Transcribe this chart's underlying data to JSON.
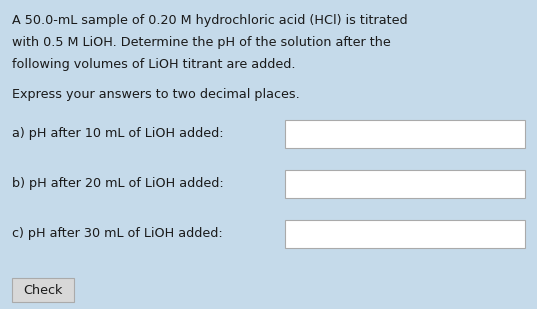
{
  "background_color": "#c5daea",
  "title_lines": [
    "A 50.0-mL sample of 0.20 M hydrochloric acid (HCl) is titrated",
    "with 0.5 M LiOH. Determine the pH of the solution after the",
    "following volumes of LiOH titrant are added."
  ],
  "subtitle": "Express your answers to two decimal places.",
  "questions": [
    "a) pH after 10 mL of LiOH added:",
    "b) pH after 20 mL of LiOH added:",
    "c) pH after 30 mL of LiOH added:"
  ],
  "check_label": "Check",
  "text_color": "#1a1a1a",
  "box_color": "#ffffff",
  "box_edge_color": "#aaaaaa",
  "check_bg": "#d8d8d8",
  "check_edge": "#aaaaaa",
  "font_size": 9.2,
  "subtitle_font_size": 9.2
}
